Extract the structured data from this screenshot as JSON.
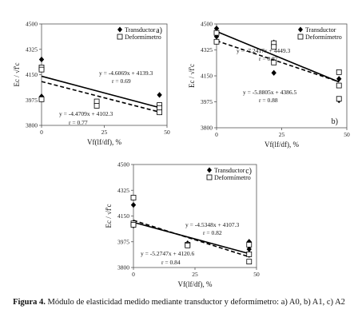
{
  "caption": {
    "bold": "Figura 4.",
    "text": " Módulo de elasticidad medido mediante transductor y deformímetro: a) A0, b) A1, c) A2"
  },
  "chart_data": [
    {
      "type": "scatter",
      "panel_label": "a)",
      "xlabel": "Vf(lf/df), %",
      "ylabel": "Ec / √f'c",
      "xlim": [
        0,
        50
      ],
      "ylim": [
        3800,
        4500
      ],
      "xticks": [
        0,
        25,
        50
      ],
      "yticks": [
        3800,
        3975,
        4150,
        4325,
        4500
      ],
      "legend_position": "top-right",
      "series": [
        {
          "name": "Transductor",
          "marker": "diamond-filled",
          "points": [
            [
              0,
              4255
            ],
            [
              0,
              4195
            ],
            [
              0,
              4000
            ],
            [
              22,
              3950
            ],
            [
              22,
              3935
            ],
            [
              47,
              4010
            ],
            [
              47,
              3900
            ],
            [
              47,
              3890
            ]
          ],
          "trend": {
            "slope": -4.6069,
            "intercept": 4139.3,
            "style": "solid",
            "equation": "y = -4.6069x + 4139.3",
            "r": "r = 0.69"
          }
        },
        {
          "name": "Deformímetro",
          "marker": "square-open",
          "points": [
            [
              0,
              4200
            ],
            [
              0,
              4185
            ],
            [
              0,
              3980
            ],
            [
              22,
              3965
            ],
            [
              22,
              3935
            ],
            [
              47,
              3940
            ],
            [
              47,
              3920
            ],
            [
              47,
              3890
            ]
          ],
          "trend": {
            "slope": -4.4709,
            "intercept": 4102.3,
            "style": "dashed",
            "equation": "y = -4.4709x + 4102.3",
            "r": "r = 0.77"
          }
        }
      ]
    },
    {
      "type": "scatter",
      "panel_label": "b)",
      "xlabel": "Vf(lf/df), %",
      "ylabel": "Ec / √f'c",
      "xlim": [
        0,
        50
      ],
      "ylim": [
        3800,
        4500
      ],
      "xticks": [
        0,
        25,
        50
      ],
      "yticks": [
        3800,
        3975,
        4150,
        4325,
        4500
      ],
      "legend_position": "top-right",
      "series": [
        {
          "name": "Transductor",
          "marker": "diamond-filled",
          "points": [
            [
              0,
              4470
            ],
            [
              0,
              4415
            ],
            [
              22,
              4375
            ],
            [
              22,
              4365
            ],
            [
              22,
              4170
            ],
            [
              47,
              4130
            ],
            [
              47,
              3990
            ],
            [
              47,
              3985
            ]
          ],
          "trend": {
            "slope": -7.2417,
            "intercept": 4449.3,
            "style": "solid",
            "equation": "y = -7.2417x + 4449.3",
            "r": "r = 0.87"
          }
        },
        {
          "name": "Deformímetro",
          "marker": "square-open",
          "points": [
            [
              0,
              4440
            ],
            [
              0,
              4380
            ],
            [
              22,
              4370
            ],
            [
              22,
              4345
            ],
            [
              22,
              4240
            ],
            [
              47,
              4175
            ],
            [
              47,
              4085
            ],
            [
              47,
              3995
            ]
          ],
          "trend": {
            "slope": -5.8805,
            "intercept": 4386.5,
            "style": "dashed",
            "equation": "y = -5.8805x + 4386.5",
            "r": "r = 0.88"
          }
        }
      ]
    },
    {
      "type": "scatter",
      "panel_label": "c)",
      "xlabel": "Vf(lf/df), %",
      "ylabel": "Ec / √f'c",
      "xlim": [
        0,
        50
      ],
      "ylim": [
        3800,
        4500
      ],
      "xticks": [
        0,
        25,
        50
      ],
      "yticks": [
        3800,
        3975,
        4150,
        4325,
        4500
      ],
      "legend_position": "top-right",
      "series": [
        {
          "name": "Transductor",
          "marker": "diamond-filled",
          "points": [
            [
              0,
              4225
            ],
            [
              0,
              4105
            ],
            [
              0,
              4085
            ],
            [
              22,
              3965
            ],
            [
              22,
              3955
            ],
            [
              47,
              3975
            ],
            [
              47,
              3925
            ],
            [
              47,
              3885
            ]
          ],
          "trend": {
            "slope": -4.5348,
            "intercept": 4107.3,
            "style": "solid",
            "equation": "y = -4.5348x + 4107.3",
            "r": "r = 0.82"
          }
        },
        {
          "name": "Deformímetro",
          "marker": "square-open",
          "points": [
            [
              0,
              4275
            ],
            [
              0,
              4100
            ],
            [
              0,
              4090
            ],
            [
              22,
              3955
            ],
            [
              22,
              3950
            ],
            [
              47,
              3955
            ],
            [
              47,
              3890
            ],
            [
              47,
              3840
            ]
          ],
          "trend": {
            "slope": -5.2747,
            "intercept": 4120.6,
            "style": "dashed",
            "equation": "y = -5.2747x + 4120.6",
            "r": "r = 0.84"
          }
        }
      ]
    }
  ]
}
